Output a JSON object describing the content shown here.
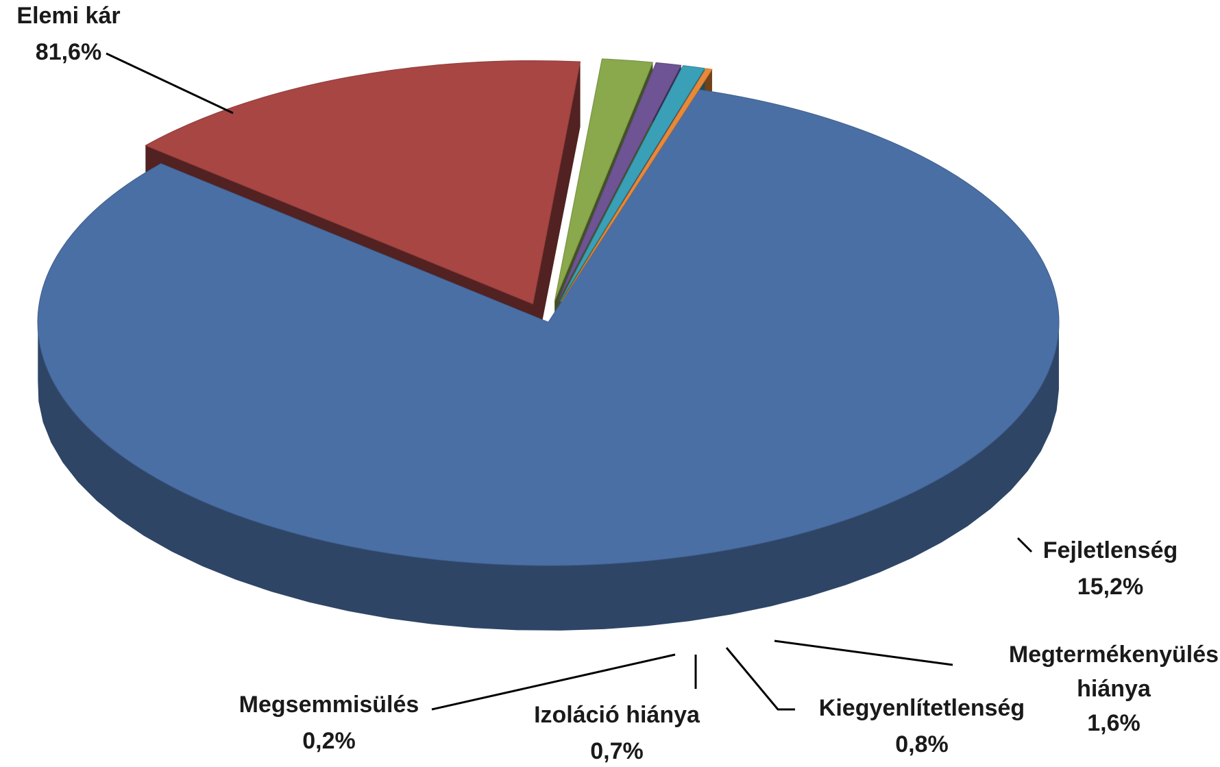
{
  "chart_data": {
    "type": "pie",
    "style": "3d-exploded",
    "slices": [
      {
        "name": "Elemi kár",
        "value": 81.6,
        "label": "81,6%",
        "color": "#4a6fa5"
      },
      {
        "name": "Fejletlenség",
        "value": 15.2,
        "label": "15,2%",
        "color": "#a84644"
      },
      {
        "name": "Megtermékenyülés hiánya",
        "value": 1.6,
        "label": "1,6%",
        "color": "#8aa84c"
      },
      {
        "name": "Kiegyenlítetlenség",
        "value": 0.8,
        "label": "0,8%",
        "color": "#6e5494"
      },
      {
        "name": "Izoláció hiánya",
        "value": 0.7,
        "label": "0,7%",
        "color": "#3aa0b8"
      },
      {
        "name": "Megsemmisülés",
        "value": 0.2,
        "label": "0,2%",
        "color": "#e8893a"
      }
    ],
    "legend": "none"
  }
}
